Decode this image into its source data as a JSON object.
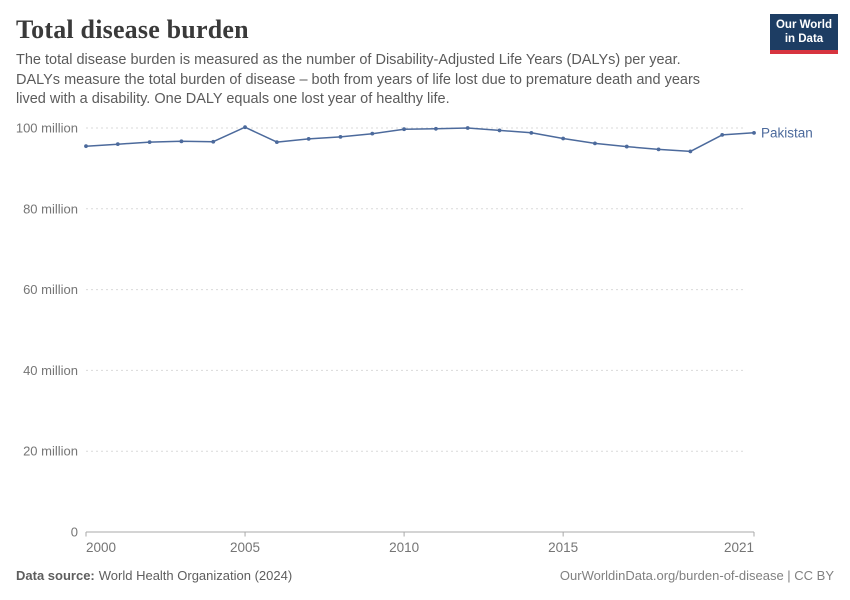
{
  "header": {
    "title": "Total disease burden",
    "subtitle": "The total disease burden is measured as the number of Disability-Adjusted Life Years (DALYs) per year. DALYs measure the total burden of disease – both from years of life lost due to premature death and years lived with a disability. One DALY equals one lost year of healthy life.",
    "logo": {
      "line1": "Our World",
      "line2": "in Data",
      "bg_color": "#1d3d63",
      "accent_color": "#d7343f"
    }
  },
  "chart_data": {
    "type": "line",
    "title": "Total disease burden",
    "value_unit": "million DALYs",
    "xlim": [
      2000,
      2021
    ],
    "ylim": [
      0,
      100
    ],
    "x": [
      2000,
      2001,
      2002,
      2003,
      2004,
      2005,
      2006,
      2007,
      2008,
      2009,
      2010,
      2011,
      2012,
      2013,
      2014,
      2015,
      2016,
      2017,
      2018,
      2019,
      2020,
      2021
    ],
    "series": [
      {
        "name": "Pakistan",
        "color": "#4c6a9c",
        "values": [
          95.5,
          96.0,
          96.5,
          96.7,
          96.6,
          100.2,
          96.5,
          97.3,
          97.8,
          98.6,
          99.7,
          99.8,
          100.0,
          99.4,
          98.8,
          97.4,
          96.2,
          95.4,
          94.7,
          94.2,
          98.3,
          98.8
        ]
      }
    ],
    "x_ticks": [
      2000,
      2005,
      2010,
      2015,
      2021
    ],
    "y_ticks": [
      0,
      20,
      40,
      60,
      80,
      100
    ],
    "y_tick_labels": [
      "0",
      "20 million",
      "40 million",
      "60 million",
      "80 million",
      "100 million"
    ],
    "grid": "horizontal dashed",
    "legend_position": "end-of-line label"
  },
  "footer": {
    "source_label": "Data source:",
    "source_value": "World Health Organization (2024)",
    "credit": "OurWorldinData.org/burden-of-disease | CC BY"
  }
}
